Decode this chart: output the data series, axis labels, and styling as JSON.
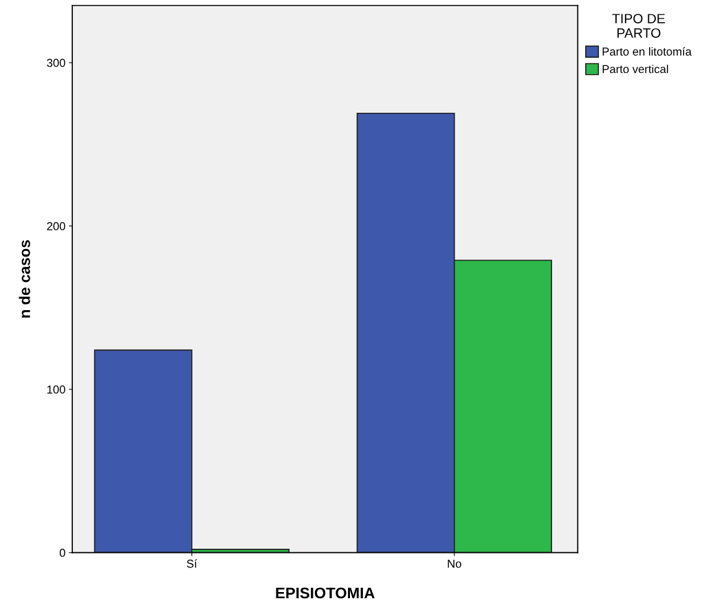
{
  "chart_data": {
    "type": "bar",
    "xlabel": "EPISIOTOMIA",
    "ylabel": "n de casos",
    "legend_title": "TIPO DE\nPARTO",
    "categories": [
      "Sí",
      "No"
    ],
    "series": [
      {
        "name": "Parto en litotomía",
        "color": "#3e58ac",
        "values": [
          124,
          269
        ]
      },
      {
        "name": "Parto vertical",
        "color": "#2eb74a",
        "values": [
          2,
          179
        ]
      }
    ],
    "ylim": [
      0,
      335
    ],
    "yticks": [
      0,
      100,
      200,
      300
    ],
    "grid": false,
    "legend": "top right"
  }
}
